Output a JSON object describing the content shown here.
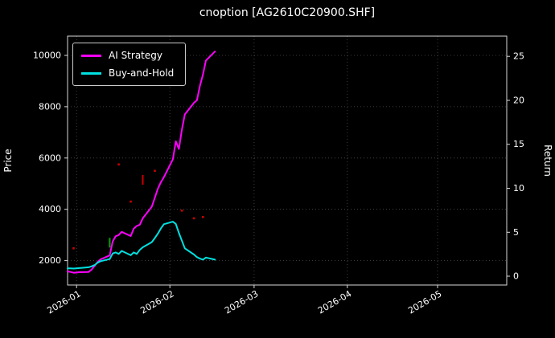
{
  "chart_data": {
    "type": "line",
    "title": "cnoption [AG2610C20900.SHF]",
    "ylabel": "Price",
    "ylabel_right": "Return",
    "grid": true,
    "legend_position": "upper left",
    "x_ticks": [
      "2026-01",
      "2026-02",
      "2026-03",
      "2026-04",
      "2026-05"
    ],
    "x_domain": [
      "2025-12-29",
      "2026-05-24"
    ],
    "ylim_left": [
      1050,
      10750
    ],
    "left_ticks": [
      2000,
      4000,
      6000,
      8000,
      10000
    ],
    "ylim_right": [
      -1,
      27.3
    ],
    "right_ticks": [
      0,
      5,
      10,
      15,
      20,
      25
    ],
    "x": [
      "2025-12-29",
      "2025-12-30",
      "2025-12-31",
      "2026-01-02",
      "2026-01-05",
      "2026-01-06",
      "2026-01-07",
      "2026-01-08",
      "2026-01-09",
      "2026-01-12",
      "2026-01-13",
      "2026-01-14",
      "2026-01-15",
      "2026-01-16",
      "2026-01-19",
      "2026-01-20",
      "2026-01-21",
      "2026-01-22",
      "2026-01-23",
      "2026-01-26",
      "2026-01-27",
      "2026-01-28",
      "2026-01-29",
      "2026-01-30",
      "2026-02-02",
      "2026-02-03",
      "2026-02-04",
      "2026-02-05",
      "2026-02-06",
      "2026-02-09",
      "2026-02-10",
      "2026-02-11",
      "2026-02-12",
      "2026-02-13",
      "2026-02-16"
    ],
    "series": [
      {
        "name": "AI Strategy",
        "color": "#ff00ff",
        "values": [
          1580,
          1560,
          1530,
          1550,
          1560,
          1650,
          1800,
          1950,
          2050,
          2200,
          2750,
          2950,
          3000,
          3120,
          2960,
          3250,
          3350,
          3400,
          3650,
          4100,
          4450,
          4800,
          5050,
          5250,
          5950,
          6650,
          6350,
          7100,
          7700,
          8150,
          8250,
          8800,
          9250,
          9800,
          10150
        ]
      },
      {
        "name": "Buy-and-Hold",
        "color": "#00e0e0",
        "values": [
          1700,
          1700,
          1690,
          1710,
          1740,
          1780,
          1830,
          1920,
          1980,
          2060,
          2280,
          2320,
          2260,
          2380,
          2210,
          2320,
          2260,
          2420,
          2520,
          2720,
          2880,
          3050,
          3250,
          3420,
          3520,
          3430,
          3080,
          2780,
          2480,
          2240,
          2140,
          2080,
          2040,
          2120,
          2040
        ]
      }
    ],
    "markers": [
      {
        "kind": "buy-signal-marker",
        "shape": "dash",
        "color": "#00a800",
        "date": "2026-01-12",
        "value": 2700
      },
      {
        "kind": "sell-signal-marker",
        "shape": "dash",
        "color": "#cc0000",
        "date": "2026-01-23",
        "value": 5150
      },
      {
        "kind": "sell-signal-marker",
        "shape": "dot",
        "color": "#cc0000",
        "date": "2025-12-31",
        "value": 2480
      },
      {
        "kind": "sell-signal-marker",
        "shape": "dot",
        "color": "#cc0000",
        "date": "2026-01-15",
        "value": 5750
      },
      {
        "kind": "sell-signal-marker",
        "shape": "dot",
        "color": "#cc0000",
        "date": "2026-01-19",
        "value": 4300
      },
      {
        "kind": "sell-signal-marker",
        "shape": "dot",
        "color": "#cc0000",
        "date": "2026-01-27",
        "value": 5500
      },
      {
        "kind": "sell-signal-marker",
        "shape": "dot",
        "color": "#cc0000",
        "date": "2026-02-05",
        "value": 3950
      },
      {
        "kind": "sell-signal-marker",
        "shape": "dot",
        "color": "#cc0000",
        "date": "2026-02-09",
        "value": 3650
      },
      {
        "kind": "sell-signal-marker",
        "shape": "dot",
        "color": "#cc0000",
        "date": "2026-02-12",
        "value": 3700
      }
    ],
    "colors": {
      "background": "#000000",
      "text": "#ffffff",
      "grid": "#9a9a9a",
      "spine": "#d9d9d9"
    }
  }
}
